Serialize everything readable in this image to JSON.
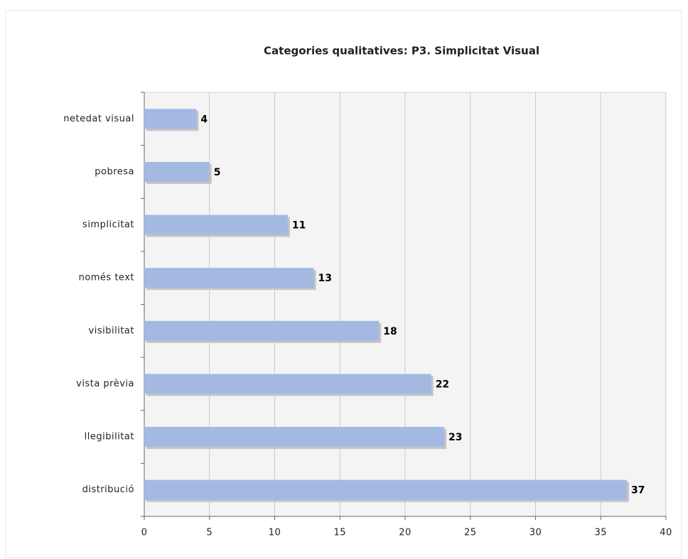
{
  "chart_data": {
    "type": "bar",
    "orientation": "horizontal",
    "title": "Categories qualitatives: P3. Simplicitat Visual",
    "categories": [
      "netedat visual",
      "pobresa",
      "simplicitat",
      "només text",
      "visibilitat",
      "vista prèvia",
      "llegibilitat",
      "distribució"
    ],
    "values": [
      4,
      5,
      11,
      13,
      18,
      22,
      23,
      37
    ],
    "color": "#a3b9e2",
    "xlim": [
      0,
      40
    ],
    "xticks": [
      0,
      5,
      10,
      15,
      20,
      25,
      30,
      35,
      40
    ],
    "grid": true
  }
}
